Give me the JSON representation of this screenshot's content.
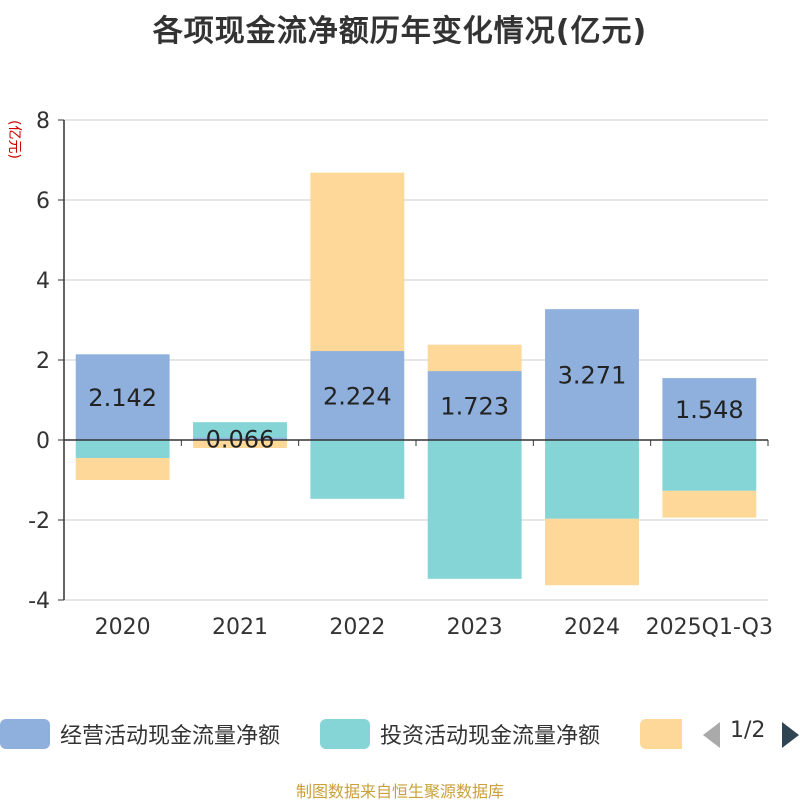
{
  "title": "各项现金流净额历年变化情况(亿元)",
  "source_note": "制图数据来自恒生聚源数据库",
  "pager": {
    "text": "1/2",
    "prev_icon": "triangle-left-icon",
    "next_icon": "triangle-right-icon"
  },
  "colors": {
    "operating": "#8fafdc",
    "investing": "#85d5d7",
    "financing": "#fdd899",
    "axis": "#333333",
    "grid": "#cccccc",
    "unit": "#cc0000",
    "pager_inactive": "#aaaaaa",
    "pager_active": "#2f4554"
  },
  "chart_data": {
    "type": "bar",
    "stacked": true,
    "title": "各项现金流净额历年变化情况(亿元)",
    "ylabel": "(亿元)",
    "xlabel": "",
    "ylim": [
      -4,
      8
    ],
    "yticks": [
      -4,
      -2,
      0,
      2,
      4,
      6,
      8
    ],
    "grid": true,
    "legend_position": "bottom",
    "categories": [
      "2020",
      "2021",
      "2022",
      "2023",
      "2024",
      "2025Q1-Q3"
    ],
    "series": [
      {
        "name": "经营活动现金流量净额",
        "key": "operating",
        "values": [
          2.142,
          0.066,
          2.224,
          1.723,
          3.271,
          1.548
        ],
        "labels": [
          "2.142",
          "0.066",
          "2.224",
          "1.723",
          "3.271",
          "1.548"
        ]
      },
      {
        "name": "投资活动现金流量净额",
        "key": "investing",
        "values": [
          -0.45,
          0.38,
          -1.47,
          -3.47,
          -1.97,
          -1.27
        ]
      },
      {
        "name": "",
        "key": "financing",
        "values": [
          -0.55,
          -0.2,
          4.46,
          0.66,
          -1.66,
          -0.67
        ]
      }
    ]
  }
}
